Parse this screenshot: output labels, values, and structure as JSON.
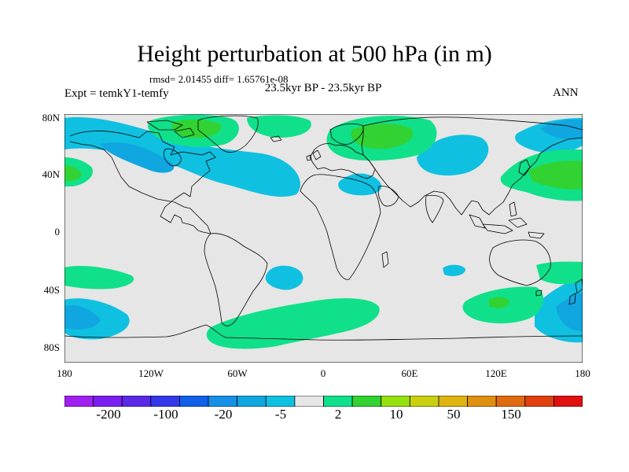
{
  "title": "Height perturbation at 500 hPa (in m)",
  "stats": "rmsd= 2.01455 diff= 1.65761e-08",
  "period": "23.5kyr BP - 23.5kyr BP",
  "experiment": "Expt = temkY1-temfy",
  "season": "ANN",
  "lat_labels": [
    "80N",
    "40N",
    "0",
    "40S",
    "80S"
  ],
  "lon_labels": [
    "180",
    "120W",
    "60W",
    "0",
    "60E",
    "120E",
    "180"
  ],
  "colorbar": {
    "colors": [
      "#a020f0",
      "#7a1ef0",
      "#5a28e6",
      "#3438e8",
      "#1060e8",
      "#1590e6",
      "#10a6e0",
      "#10c0e0",
      "#e6e6e6",
      "#10e08a",
      "#32d232",
      "#96e010",
      "#c8d010",
      "#e0b410",
      "#e09010",
      "#e06a10",
      "#e04010",
      "#e01010"
    ],
    "labels": [
      "-200",
      "-100",
      "-20",
      "-5",
      "2",
      "10",
      "50",
      "150"
    ]
  },
  "field_colors": {
    "land_outline": "#000000",
    "background": "#e6e6e6",
    "neg_light": "#10c0e0",
    "neg_mid": "#10a6e0",
    "pos_light": "#10e08a",
    "pos_mid": "#32d232"
  }
}
